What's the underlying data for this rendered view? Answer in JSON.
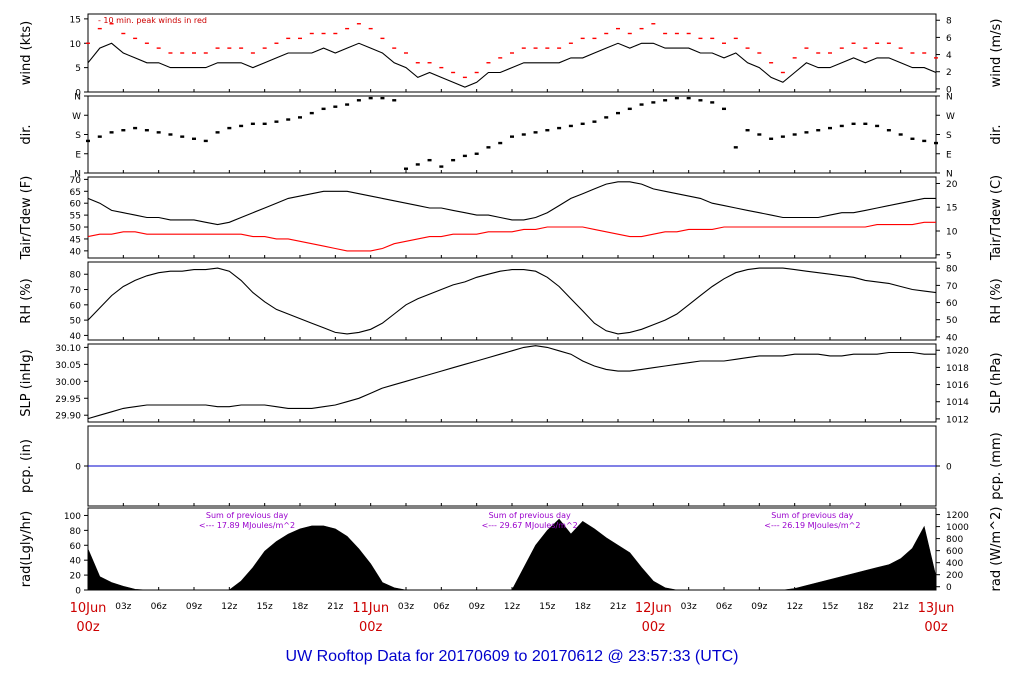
{
  "page": {
    "footer_title": "UW Rooftop Data for 20170609  to  20170612 @ 23:57:33  (UTC)"
  },
  "colors": {
    "frame": "#000000",
    "series_main": "#000000",
    "series_red": "#ff0000",
    "annotation_red": "#cc0000",
    "annotation_purple": "#9900cc",
    "precip": "#0000cc",
    "title": "#0000cc"
  },
  "chart_data": [
    {
      "type": "line",
      "panel": "wind",
      "ylabel": "wind (kts)",
      "ylabel_right": "wind (m/s)",
      "ylim": [
        0,
        16
      ],
      "y_ticks": [
        0,
        5,
        10,
        15
      ],
      "y_ticks_right": [
        0,
        2,
        4,
        6,
        8
      ],
      "annotation": "- 10 min. peak winds in red",
      "x": [
        0,
        1,
        2,
        3,
        4,
        5,
        6,
        7,
        8,
        9,
        10,
        11,
        12,
        13,
        14,
        15,
        16,
        17,
        18,
        19,
        20,
        21,
        22,
        23,
        24,
        25,
        26,
        27,
        28,
        29,
        30,
        31,
        32,
        33,
        34,
        35,
        36,
        37,
        38,
        39,
        40,
        41,
        42,
        43,
        44,
        45,
        46,
        47,
        48,
        49,
        50,
        51,
        52,
        53,
        54,
        55,
        56,
        57,
        58,
        59,
        60,
        61,
        62,
        63,
        64,
        65,
        66,
        67,
        68,
        69,
        70,
        71,
        72
      ],
      "series": [
        {
          "name": "wind",
          "values": [
            6,
            9,
            10,
            8,
            7,
            6,
            6,
            5,
            5,
            5,
            5,
            6,
            6,
            6,
            5,
            6,
            7,
            8,
            8,
            8,
            9,
            8,
            9,
            10,
            9,
            8,
            6,
            5,
            3,
            4,
            3,
            2,
            1,
            2,
            4,
            4,
            5,
            6,
            6,
            6,
            6,
            7,
            7,
            8,
            9,
            10,
            9,
            10,
            10,
            9,
            9,
            9,
            8,
            8,
            7,
            8,
            6,
            5,
            3,
            2,
            4,
            6,
            5,
            5,
            6,
            7,
            6,
            7,
            7,
            6,
            5,
            5,
            4
          ]
        },
        {
          "name": "10 min. peak",
          "values": [
            10,
            13,
            14,
            12,
            11,
            10,
            9,
            8,
            8,
            8,
            8,
            9,
            9,
            9,
            8,
            9,
            10,
            11,
            11,
            12,
            12,
            12,
            13,
            14,
            13,
            11,
            9,
            8,
            6,
            6,
            5,
            4,
            3,
            4,
            6,
            7,
            8,
            9,
            9,
            9,
            9,
            10,
            11,
            11,
            12,
            13,
            12,
            13,
            14,
            12,
            12,
            12,
            11,
            11,
            10,
            11,
            9,
            8,
            6,
            4,
            7,
            9,
            8,
            8,
            9,
            10,
            9,
            10,
            10,
            9,
            8,
            8,
            7
          ]
        }
      ]
    },
    {
      "type": "scatter",
      "panel": "direction",
      "ylabel": "dir.",
      "ylabel_right": "dir.",
      "y_categories": [
        "N",
        "E",
        "S",
        "W",
        "N"
      ],
      "ylim": [
        0,
        360
      ],
      "x": [
        0,
        1,
        2,
        3,
        4,
        5,
        6,
        7,
        8,
        9,
        10,
        11,
        12,
        13,
        14,
        15,
        16,
        17,
        18,
        19,
        20,
        21,
        22,
        23,
        24,
        25,
        26,
        27,
        28,
        29,
        30,
        31,
        32,
        33,
        34,
        35,
        36,
        37,
        38,
        39,
        40,
        41,
        42,
        43,
        44,
        45,
        46,
        47,
        48,
        49,
        50,
        51,
        52,
        53,
        54,
        55,
        56,
        57,
        58,
        59,
        60,
        61,
        62,
        63,
        64,
        65,
        66,
        67,
        68,
        69,
        70,
        71,
        72
      ],
      "values": [
        150,
        170,
        190,
        200,
        210,
        200,
        190,
        180,
        170,
        160,
        150,
        190,
        210,
        220,
        230,
        230,
        240,
        250,
        260,
        280,
        300,
        310,
        320,
        340,
        350,
        350,
        340,
        20,
        40,
        60,
        30,
        60,
        80,
        90,
        120,
        140,
        170,
        180,
        190,
        200,
        210,
        220,
        230,
        240,
        260,
        280,
        300,
        320,
        330,
        340,
        350,
        350,
        340,
        330,
        300,
        120,
        200,
        180,
        160,
        170,
        180,
        190,
        200,
        210,
        220,
        230,
        230,
        220,
        200,
        180,
        160,
        150,
        140
      ]
    },
    {
      "type": "line",
      "panel": "temperature",
      "ylabel": "Tair/Tdew (F)",
      "ylabel_right": "Tair/Tdew (C)",
      "ylim": [
        37,
        71
      ],
      "y_ticks": [
        40,
        45,
        50,
        55,
        60,
        65,
        70
      ],
      "y_ticks_right": [
        5,
        10,
        15,
        20
      ],
      "x": [
        0,
        1,
        2,
        3,
        4,
        5,
        6,
        7,
        8,
        9,
        10,
        11,
        12,
        13,
        14,
        15,
        16,
        17,
        18,
        19,
        20,
        21,
        22,
        23,
        24,
        25,
        26,
        27,
        28,
        29,
        30,
        31,
        32,
        33,
        34,
        35,
        36,
        37,
        38,
        39,
        40,
        41,
        42,
        43,
        44,
        45,
        46,
        47,
        48,
        49,
        50,
        51,
        52,
        53,
        54,
        55,
        56,
        57,
        58,
        59,
        60,
        61,
        62,
        63,
        64,
        65,
        66,
        67,
        68,
        69,
        70,
        71,
        72
      ],
      "series": [
        {
          "name": "Tair",
          "values": [
            62,
            60,
            57,
            56,
            55,
            54,
            54,
            53,
            53,
            53,
            52,
            51,
            52,
            54,
            56,
            58,
            60,
            62,
            63,
            64,
            65,
            65,
            65,
            64,
            63,
            62,
            61,
            60,
            59,
            58,
            58,
            57,
            56,
            55,
            55,
            54,
            53,
            53,
            54,
            56,
            59,
            62,
            64,
            66,
            68,
            69,
            69,
            68,
            66,
            65,
            64,
            63,
            62,
            60,
            59,
            58,
            57,
            56,
            55,
            54,
            54,
            54,
            54,
            55,
            56,
            56,
            57,
            58,
            59,
            60,
            61,
            62,
            62
          ]
        },
        {
          "name": "Tdew",
          "values": [
            46,
            47,
            47,
            48,
            48,
            47,
            47,
            47,
            47,
            47,
            47,
            47,
            47,
            47,
            46,
            46,
            45,
            45,
            44,
            43,
            42,
            41,
            40,
            40,
            40,
            41,
            43,
            44,
            45,
            46,
            46,
            47,
            47,
            47,
            48,
            48,
            48,
            49,
            49,
            50,
            50,
            50,
            50,
            49,
            48,
            47,
            46,
            46,
            47,
            48,
            48,
            49,
            49,
            49,
            50,
            50,
            50,
            50,
            50,
            50,
            50,
            50,
            50,
            50,
            50,
            50,
            50,
            51,
            51,
            51,
            51,
            52,
            52
          ]
        }
      ]
    },
    {
      "type": "line",
      "panel": "relative_humidity",
      "ylabel": "RH (%)",
      "ylabel_right": "RH (%)",
      "ylim": [
        37,
        88
      ],
      "y_ticks": [
        40,
        50,
        60,
        70,
        80
      ],
      "y_ticks_right": [
        40,
        50,
        60,
        70,
        80
      ],
      "x": [
        0,
        1,
        2,
        3,
        4,
        5,
        6,
        7,
        8,
        9,
        10,
        11,
        12,
        13,
        14,
        15,
        16,
        17,
        18,
        19,
        20,
        21,
        22,
        23,
        24,
        25,
        26,
        27,
        28,
        29,
        30,
        31,
        32,
        33,
        34,
        35,
        36,
        37,
        38,
        39,
        40,
        41,
        42,
        43,
        44,
        45,
        46,
        47,
        48,
        49,
        50,
        51,
        52,
        53,
        54,
        55,
        56,
        57,
        58,
        59,
        60,
        61,
        62,
        63,
        64,
        65,
        66,
        67,
        68,
        69,
        70,
        71,
        72
      ],
      "values": [
        50,
        58,
        66,
        72,
        76,
        79,
        81,
        82,
        82,
        83,
        83,
        84,
        82,
        76,
        68,
        62,
        57,
        54,
        51,
        48,
        45,
        42,
        41,
        42,
        44,
        48,
        54,
        60,
        64,
        67,
        70,
        73,
        75,
        78,
        80,
        82,
        83,
        83,
        82,
        78,
        72,
        64,
        56,
        48,
        43,
        41,
        42,
        44,
        47,
        50,
        54,
        60,
        66,
        72,
        77,
        81,
        83,
        84,
        84,
        84,
        83,
        82,
        81,
        80,
        79,
        78,
        76,
        75,
        74,
        72,
        70,
        69,
        68
      ]
    },
    {
      "type": "line",
      "panel": "pressure",
      "ylabel": "SLP (inHg)",
      "ylabel_right": "SLP (hPa)",
      "ylim": [
        29.88,
        30.11
      ],
      "y_ticks": [
        29.9,
        29.95,
        30.0,
        30.05,
        30.1
      ],
      "y_ticks_right": [
        1012,
        1014,
        1016,
        1018,
        1020
      ],
      "x": [
        0,
        1,
        2,
        3,
        4,
        5,
        6,
        7,
        8,
        9,
        10,
        11,
        12,
        13,
        14,
        15,
        16,
        17,
        18,
        19,
        20,
        21,
        22,
        23,
        24,
        25,
        26,
        27,
        28,
        29,
        30,
        31,
        32,
        33,
        34,
        35,
        36,
        37,
        38,
        39,
        40,
        41,
        42,
        43,
        44,
        45,
        46,
        47,
        48,
        49,
        50,
        51,
        52,
        53,
        54,
        55,
        56,
        57,
        58,
        59,
        60,
        61,
        62,
        63,
        64,
        65,
        66,
        67,
        68,
        69,
        70,
        71,
        72
      ],
      "values": [
        29.89,
        29.9,
        29.91,
        29.92,
        29.925,
        29.93,
        29.93,
        29.93,
        29.93,
        29.93,
        29.93,
        29.925,
        29.925,
        29.93,
        29.93,
        29.93,
        29.925,
        29.92,
        29.92,
        29.92,
        29.925,
        29.93,
        29.94,
        29.95,
        29.965,
        29.98,
        29.99,
        30.0,
        30.01,
        30.02,
        30.03,
        30.04,
        30.05,
        30.06,
        30.07,
        30.08,
        30.09,
        30.1,
        30.105,
        30.1,
        30.09,
        30.08,
        30.06,
        30.045,
        30.035,
        30.03,
        30.03,
        30.035,
        30.04,
        30.045,
        30.05,
        30.055,
        30.06,
        30.06,
        30.06,
        30.065,
        30.07,
        30.075,
        30.075,
        30.075,
        30.08,
        30.08,
        30.08,
        30.075,
        30.075,
        30.08,
        30.08,
        30.08,
        30.085,
        30.085,
        30.085,
        30.08,
        30.08
      ]
    },
    {
      "type": "line",
      "panel": "precipitation",
      "ylabel": "pcp. (in)",
      "ylabel_right": "pcp. (mm)",
      "ylim": [
        -1,
        1
      ],
      "y_ticks": [
        0
      ],
      "y_ticks_right": [
        0
      ],
      "x": [
        0,
        72
      ],
      "values": [
        0,
        0
      ]
    },
    {
      "type": "area",
      "panel": "radiation",
      "ylabel": "rad(Lgly/hr)",
      "ylabel_right": "rad (W/m^2)",
      "ylim": [
        0,
        110
      ],
      "y_ticks": [
        0,
        20,
        40,
        60,
        80,
        100
      ],
      "y_ticks_right": [
        0,
        200,
        400,
        600,
        800,
        1000,
        1200
      ],
      "x": [
        0,
        1,
        2,
        3,
        4,
        5,
        6,
        7,
        8,
        9,
        10,
        11,
        12,
        13,
        14,
        15,
        16,
        17,
        18,
        19,
        20,
        21,
        22,
        23,
        24,
        25,
        26,
        27,
        28,
        29,
        30,
        31,
        32,
        33,
        34,
        35,
        36,
        37,
        38,
        39,
        40,
        41,
        42,
        43,
        44,
        45,
        46,
        47,
        48,
        49,
        50,
        51,
        52,
        53,
        54,
        55,
        56,
        57,
        58,
        59,
        60,
        61,
        62,
        63,
        64,
        65,
        66,
        67,
        68,
        69,
        70,
        71,
        72
      ],
      "values": [
        55,
        18,
        10,
        5,
        1,
        0,
        0,
        0,
        0,
        0,
        0,
        0,
        0,
        12,
        30,
        52,
        65,
        75,
        82,
        86,
        86,
        82,
        72,
        55,
        35,
        10,
        3,
        0,
        0,
        0,
        0,
        0,
        0,
        0,
        0,
        0,
        0,
        30,
        60,
        80,
        95,
        75,
        92,
        82,
        70,
        60,
        50,
        30,
        12,
        3,
        0,
        0,
        0,
        0,
        0,
        0,
        0,
        0,
        0,
        0,
        2,
        6,
        10,
        14,
        18,
        22,
        26,
        30,
        34,
        42,
        56,
        85,
        18
      ]
    }
  ],
  "radiation_annotations": [
    {
      "label": "Sum of previous day",
      "value": "<--- 17.89 MJoules/m^2",
      "x": 13.5
    },
    {
      "label": "Sum of previous day",
      "value": "<--- 29.67 MJoules/m^2",
      "x": 37.5
    },
    {
      "label": "Sum of previous day",
      "value": "<--- 26.19 MJoules/m^2",
      "x": 61.5
    }
  ],
  "x_axis": {
    "tick_labels": [
      "03z",
      "06z",
      "09z",
      "12z",
      "15z",
      "18z",
      "21z",
      "03z",
      "06z",
      "09z",
      "12z",
      "15z",
      "18z",
      "21z",
      "03z",
      "06z",
      "09z",
      "12z",
      "15z",
      "18z",
      "21z"
    ],
    "tick_hours": [
      3,
      6,
      9,
      12,
      15,
      18,
      21,
      27,
      30,
      33,
      36,
      39,
      42,
      45,
      51,
      54,
      57,
      60,
      63,
      66,
      69
    ],
    "date_labels": [
      {
        "line1": "10Jun",
        "line2": "00z",
        "hour": 0
      },
      {
        "line1": "11Jun",
        "line2": "00z",
        "hour": 24
      },
      {
        "line1": "12Jun",
        "line2": "00z",
        "hour": 48
      },
      {
        "line1": "13Jun",
        "line2": "00z",
        "hour": 72
      }
    ]
  }
}
